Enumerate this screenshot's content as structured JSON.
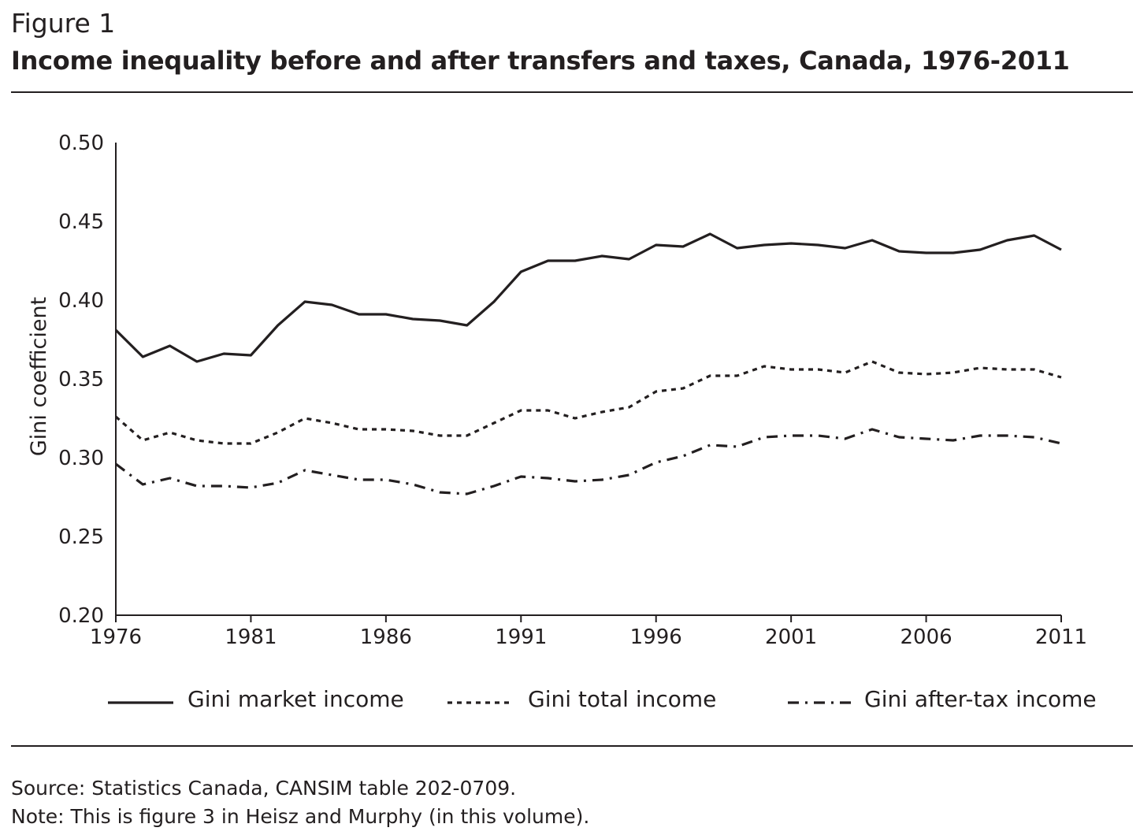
{
  "figure": {
    "label": "Figure 1",
    "title": "Income inequality before and after transfers and taxes, Canada, 1976-2011"
  },
  "source": {
    "line1": "Source: Statistics Canada, CANSIM table 202-0709.",
    "line2": "Note: This is figure 3 in Heisz and Murphy (in this volume)."
  },
  "colors": {
    "ink": "#231f20",
    "background": "#ffffff"
  },
  "chart_data": {
    "type": "line",
    "title": "Income inequality before and after transfers and taxes, Canada, 1976-2011",
    "xlabel": "",
    "ylabel": "Gini coefficient",
    "ylim": [
      0.2,
      0.5
    ],
    "xlim": [
      1976,
      2011
    ],
    "grid": false,
    "legend_position": "bottom",
    "y_ticks": [
      "0.20",
      "0.25",
      "0.30",
      "0.35",
      "0.40",
      "0.45",
      "0.50"
    ],
    "x_ticks": [
      "1976",
      "1981",
      "1986",
      "1991",
      "1996",
      "2001",
      "2006",
      "2011"
    ],
    "x": [
      1976,
      1977,
      1978,
      1979,
      1980,
      1981,
      1982,
      1983,
      1984,
      1985,
      1986,
      1987,
      1988,
      1989,
      1990,
      1991,
      1992,
      1993,
      1994,
      1995,
      1996,
      1997,
      1998,
      1999,
      2000,
      2001,
      2002,
      2003,
      2004,
      2005,
      2006,
      2007,
      2008,
      2009,
      2010,
      2011
    ],
    "series": [
      {
        "name": "Gini market income",
        "style": "solid",
        "values": [
          0.381,
          0.364,
          0.371,
          0.361,
          0.366,
          0.365,
          0.384,
          0.399,
          0.397,
          0.391,
          0.391,
          0.388,
          0.387,
          0.384,
          0.399,
          0.418,
          0.425,
          0.425,
          0.428,
          0.426,
          0.435,
          0.434,
          0.442,
          0.433,
          0.435,
          0.436,
          0.435,
          0.433,
          0.438,
          0.431,
          0.43,
          0.43,
          0.432,
          0.438,
          0.441,
          0.432
        ]
      },
      {
        "name": "Gini total income",
        "style": "dotted",
        "values": [
          0.326,
          0.311,
          0.316,
          0.311,
          0.309,
          0.309,
          0.316,
          0.325,
          0.322,
          0.318,
          0.318,
          0.317,
          0.314,
          0.314,
          0.322,
          0.33,
          0.33,
          0.325,
          0.329,
          0.332,
          0.342,
          0.344,
          0.352,
          0.352,
          0.358,
          0.356,
          0.356,
          0.354,
          0.361,
          0.354,
          0.353,
          0.354,
          0.357,
          0.356,
          0.356,
          0.351
        ]
      },
      {
        "name": "Gini after-tax income",
        "style": "dash-dot",
        "values": [
          0.296,
          0.283,
          0.287,
          0.282,
          0.282,
          0.281,
          0.284,
          0.292,
          0.289,
          0.286,
          0.286,
          0.283,
          0.278,
          0.277,
          0.282,
          0.288,
          0.287,
          0.285,
          0.286,
          0.289,
          0.297,
          0.301,
          0.308,
          0.307,
          0.313,
          0.314,
          0.314,
          0.312,
          0.318,
          0.313,
          0.312,
          0.311,
          0.314,
          0.314,
          0.313,
          0.309
        ]
      }
    ]
  }
}
